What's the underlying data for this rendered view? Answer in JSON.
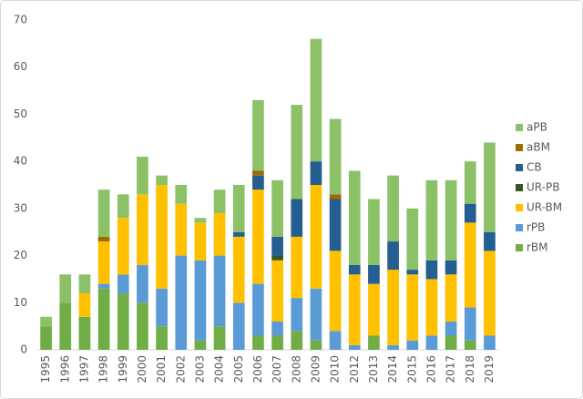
{
  "chart_data": {
    "type": "stacked_bar",
    "categories": [
      "1995",
      "1996",
      "1997",
      "1998",
      "1999",
      "2000",
      "2001",
      "2002",
      "2003",
      "2004",
      "2005",
      "2006",
      "2007",
      "2008",
      "2009",
      "2010",
      "2012",
      "2013",
      "2014",
      "2015",
      "2016",
      "2017",
      "2018",
      "2019"
    ],
    "series": [
      {
        "name": "rBM",
        "color": "#70ad47",
        "values": [
          5,
          10,
          7,
          13,
          12,
          10,
          5,
          0,
          2,
          5,
          0,
          3,
          3,
          4,
          2,
          0,
          0,
          3,
          0,
          0,
          0,
          3,
          2,
          0
        ]
      },
      {
        "name": "rPB",
        "color": "#5b9bd5",
        "values": [
          0,
          0,
          0,
          1,
          4,
          8,
          8,
          20,
          17,
          15,
          10,
          11,
          3,
          7,
          11,
          4,
          1,
          0,
          1,
          2,
          3,
          3,
          7,
          3
        ]
      },
      {
        "name": "UR-BM",
        "color": "#ffc000",
        "values": [
          0,
          0,
          5,
          9,
          12,
          15,
          22,
          11,
          8,
          9,
          14,
          20,
          13,
          13,
          22,
          17,
          15,
          11,
          16,
          14,
          12,
          10,
          18,
          18
        ]
      },
      {
        "name": "UR-PB",
        "color": "#375623",
        "values": [
          0,
          0,
          0,
          0,
          0,
          0,
          0,
          0,
          0,
          0,
          0,
          0,
          1,
          0,
          0,
          0,
          0,
          0,
          0,
          0,
          0,
          0,
          0,
          0
        ]
      },
      {
        "name": "CB",
        "color": "#255e91",
        "values": [
          0,
          0,
          0,
          0,
          0,
          0,
          0,
          0,
          0,
          0,
          1,
          3,
          4,
          8,
          5,
          11,
          2,
          4,
          6,
          1,
          4,
          3,
          4,
          4
        ]
      },
      {
        "name": "aBM",
        "color": "#9e6b00",
        "values": [
          0,
          0,
          0,
          1,
          0,
          0,
          0,
          0,
          0,
          0,
          0,
          1,
          0,
          0,
          0,
          1,
          0,
          0,
          0,
          0,
          0,
          0,
          0,
          0
        ]
      },
      {
        "name": "aPB",
        "color": "#8cc168",
        "values": [
          2,
          6,
          4,
          10,
          5,
          8,
          2,
          4,
          1,
          5,
          10,
          15,
          12,
          20,
          26,
          16,
          20,
          14,
          14,
          13,
          17,
          17,
          9,
          19
        ]
      }
    ],
    "ylim": [
      0,
      70
    ],
    "yticks": [
      0,
      10,
      20,
      30,
      40,
      50,
      60,
      70
    ],
    "grid": false,
    "legend": "right"
  }
}
